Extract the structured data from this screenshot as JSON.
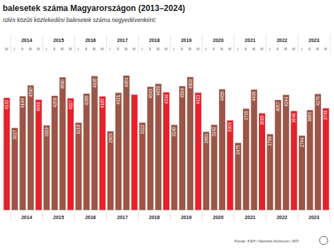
{
  "chart_data": {
    "type": "bar",
    "title": "balesetek száma Magyarországon (2013–2024)",
    "subtitle": "rülés közúti közlekedési balesetek száma negyedévenként:",
    "source": "Forrás: KSH / Nemzeti Archívum / MTI",
    "years": [
      "2014",
      "2015",
      "2016",
      "2017",
      "2018",
      "2019",
      "2020",
      "2021",
      "2022",
      "2023"
    ],
    "categories": [
      "IV.",
      "I.",
      "II.",
      "III.",
      "IV.",
      "I.",
      "II.",
      "III.",
      "IV.",
      "I.",
      "II.",
      "III.",
      "IV.",
      "I.",
      "II.",
      "III.",
      "IV.",
      "I.",
      "II.",
      "III.",
      "IV.",
      "I.",
      "II.",
      "III.",
      "IV.",
      "I.",
      "II.",
      "III.",
      "IV.",
      "I.",
      "II.",
      "III.",
      "IV.",
      "I.",
      "II.",
      "III.",
      "IV.",
      "I.",
      "II.",
      "III.",
      "IV."
    ],
    "values": [
      4132,
      3027,
      4194,
      4590,
      4066,
      3119,
      4209,
      4890,
      4117,
      3219,
      4288,
      4935,
      4185,
      2903,
      4321,
      4954,
      4250,
      3222,
      4543,
      4650,
      4336,
      3140,
      4564,
      4900,
      4323,
      2883,
      3142,
      4450,
      3303,
      2475,
      3735,
      4438,
      3565,
      2799,
      4057,
      4244,
      3646,
      2744,
      3683,
      4276,
      3749
    ],
    "value_labels": [
      "4132",
      "3027",
      "4194",
      "4590",
      "4066",
      "3119",
      "4209",
      "4890",
      "4117",
      "3219",
      "4288",
      "4935",
      "4185",
      "2903",
      "4321",
      "4954",
      null,
      "3222",
      "4543",
      "4650",
      "4336",
      "3140",
      "4564",
      "4900",
      "4323",
      "2883",
      "3142",
      "4450",
      "3303",
      "2475",
      "3735",
      "4438",
      "3565",
      "2799",
      "4057",
      "4244",
      "3646",
      "2744",
      "3683",
      "4276",
      "3749"
    ],
    "colors": [
      "#e3222b",
      "#9c5546",
      "#9c5546",
      "#9c5546",
      "#e3222b",
      "#9c5546",
      "#9c5546",
      "#9c5546",
      "#e3222b",
      "#9c5546",
      "#9c5546",
      "#9c5546",
      "#e3222b",
      "#9c5546",
      "#9c5546",
      "#9c5546",
      "#e3222b",
      "#9c5546",
      "#9c5546",
      "#9c5546",
      "#e3222b",
      "#9c5546",
      "#9c5546",
      "#9c5546",
      "#e3222b",
      "#9c5546",
      "#9c5546",
      "#9c5546",
      "#e3222b",
      "#9c5546",
      "#9c5546",
      "#9c5546",
      "#e3222b",
      "#9c5546",
      "#9c5546",
      "#9c5546",
      "#e3222b",
      "#9c5546",
      "#9c5546",
      "#9c5546",
      "#e3222b"
    ],
    "ylim": [
      0,
      5200
    ],
    "data_labels": true,
    "tick_labels": "x",
    "grid": false
  }
}
